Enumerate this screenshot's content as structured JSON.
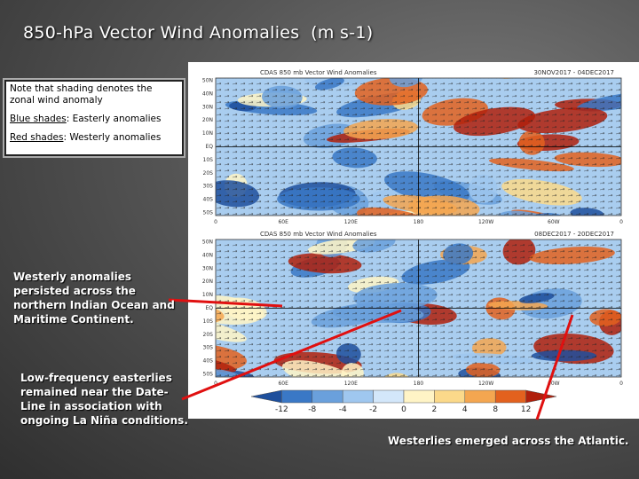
{
  "title": "850-hPa Vector Wind Anomalies  (m s-1)",
  "note": {
    "line1": "Note that shading denotes the",
    "line2": "zonal wind anomaly",
    "blue_label": "Blue shades",
    "blue_text": ": Easterly anomalies",
    "red_label": "Red shades",
    "red_text": ": Westerly anomalies"
  },
  "maps": [
    {
      "header": "CDAS  850 mb  Vector Wind Anomalies",
      "dates": "30NOV2017 - 04DEC2017"
    },
    {
      "header": "CDAS  850 mb  Vector Wind Anomalies",
      "dates": "08DEC2017 - 20DEC2017"
    }
  ],
  "lat_labels": [
    "50N",
    "40N",
    "30N",
    "20N",
    "10N",
    "EQ",
    "10S",
    "20S",
    "30S",
    "40S",
    "50S"
  ],
  "lon_labels": [
    "0",
    "60E",
    "120E",
    "180",
    "120W",
    "60W",
    "0"
  ],
  "colorbar": {
    "labels": [
      "-12",
      "-8",
      "-4",
      "-2",
      "0",
      "2",
      "4",
      "8",
      "12"
    ],
    "colors": [
      "#1e4f9c",
      "#3a78c6",
      "#6aa0dc",
      "#9fc7ef",
      "#d3e7fa",
      "#fff4c6",
      "#fbd98a",
      "#f4a650",
      "#e3611e",
      "#b0200c"
    ]
  },
  "annotations": [
    {
      "lines": [
        "Westerly anomalies",
        "persisted across the",
        "northern Indian Ocean and",
        "Maritime Continent."
      ]
    },
    {
      "lines": [
        "Low-frequency easterlies",
        "remained near the Date-",
        "Line in association with",
        "ongoing La Niña conditions."
      ]
    },
    {
      "lines": [
        "Westerlies emerged across the Atlantic."
      ]
    }
  ]
}
